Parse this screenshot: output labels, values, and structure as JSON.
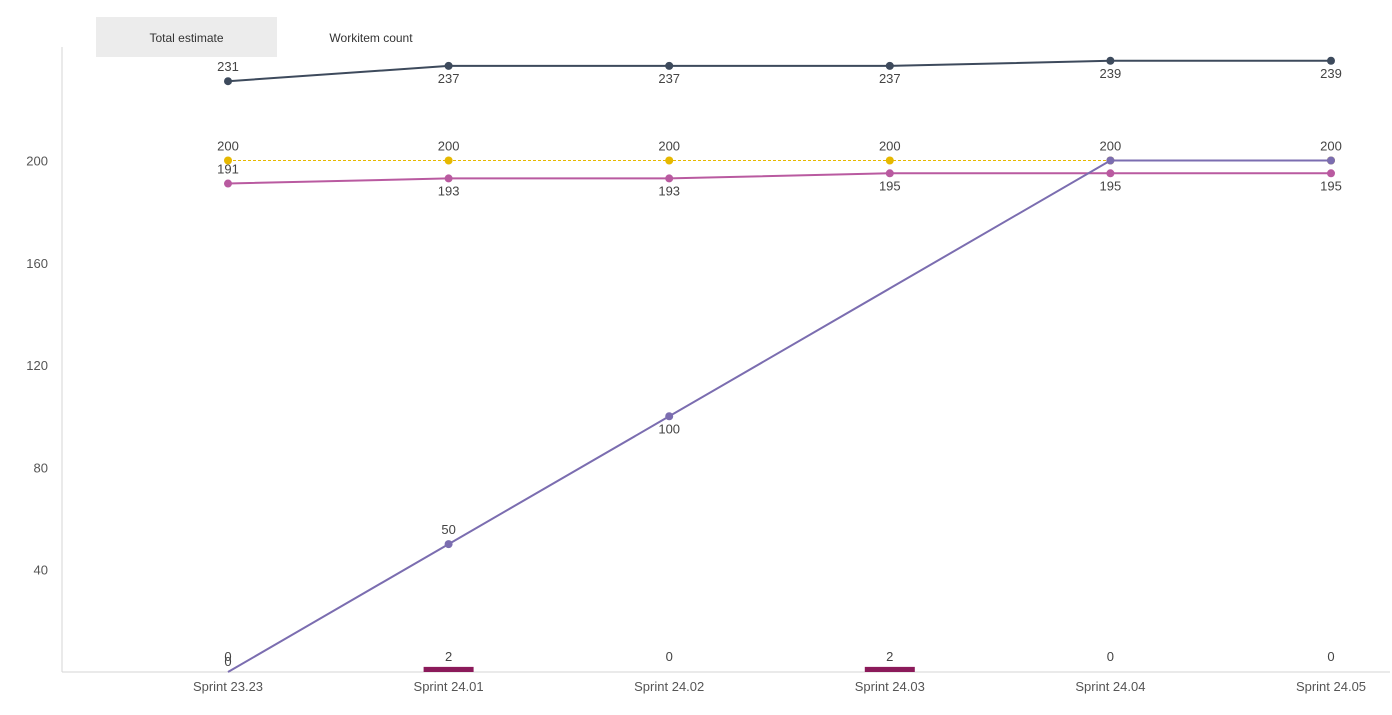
{
  "tabs": [
    {
      "label": "Total estimate",
      "active": true
    },
    {
      "label": "Workitem count",
      "active": false
    }
  ],
  "chart_data": {
    "type": "line",
    "categories": [
      "Sprint 23.23",
      "Sprint 24.01",
      "Sprint 24.02",
      "Sprint 24.03",
      "Sprint 24.04",
      "Sprint 24.05"
    ],
    "ylim": [
      0,
      240
    ],
    "yticks": [
      40,
      80,
      120,
      160,
      200
    ],
    "grid": false,
    "series": [
      {
        "type": "line",
        "color": "#3d4a5c",
        "values": [
          231,
          237,
          237,
          237,
          239,
          239
        ],
        "label_pos": [
          "above",
          "below",
          "below",
          "below",
          "below",
          "below"
        ]
      },
      {
        "type": "dashed-line",
        "color": "#e6b800",
        "values": [
          200,
          200,
          200,
          200,
          200,
          200
        ],
        "label_pos": [
          "above",
          "above",
          "above",
          "above",
          "above",
          "above"
        ]
      },
      {
        "type": "line",
        "color": "#b95aa0",
        "values": [
          191,
          193,
          193,
          195,
          195,
          195
        ],
        "label_pos": [
          "above",
          "below",
          "below",
          "below",
          "below",
          "below"
        ]
      },
      {
        "type": "line",
        "color": "#7b6db0",
        "values": [
          0,
          50,
          100,
          150,
          200,
          200
        ],
        "marker_at": [
          1,
          2,
          4,
          5
        ],
        "label_at": [
          1,
          2
        ],
        "label_pos": [
          "above",
          "above",
          "below",
          "above",
          "above",
          "above"
        ]
      },
      {
        "type": "bar",
        "color": "#8b1a5a",
        "values": [
          0,
          2,
          0,
          2,
          0,
          0
        ],
        "label_pos": [
          "above",
          "above",
          "above",
          "above",
          "above",
          "above"
        ]
      }
    ]
  }
}
